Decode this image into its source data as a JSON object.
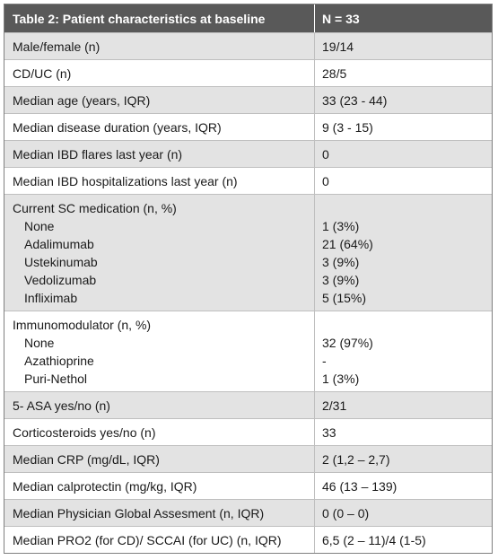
{
  "table": {
    "header": [
      "Table 2: Patient characteristics at baseline",
      "N = 33"
    ],
    "rows": [
      {
        "label": "Male/female (n)",
        "value": "19/14"
      },
      {
        "label": "CD/UC (n)",
        "value": "28/5"
      },
      {
        "label": "Median age (years, IQR)",
        "value": "33 (23 - 44)"
      },
      {
        "label": "Median disease duration (years, IQR)",
        "value": "9 (3 - 15)"
      },
      {
        "label": "Median IBD flares last year (n)",
        "value": "0"
      },
      {
        "label": "Median IBD hospitalizations last year (n)",
        "value": "0"
      },
      {
        "label": "Current SC medication (n, %)",
        "items": [
          [
            "None",
            "1 (3%)"
          ],
          [
            "Adalimumab",
            "21 (64%)"
          ],
          [
            "Ustekinumab",
            "3 (9%)"
          ],
          [
            "Vedolizumab",
            "3 (9%)"
          ],
          [
            "Infliximab",
            "5 (15%)"
          ]
        ]
      },
      {
        "label": "Immunomodulator (n, %)",
        "items": [
          [
            "None",
            "32 (97%)"
          ],
          [
            "Azathioprine",
            "-"
          ],
          [
            "Puri-Nethol",
            "1 (3%)"
          ]
        ]
      },
      {
        "label": "5- ASA yes/no (n)",
        "value": "2/31"
      },
      {
        "label": "Corticosteroids yes/no (n)",
        "value": "33"
      },
      {
        "label": "Median CRP (mg/dL, IQR)",
        "value": "2 (1,2 – 2,7)"
      },
      {
        "label": "Median calprotectin (mg/kg, IQR)",
        "value": "46 (13 – 139)"
      },
      {
        "label": "Median Physician Global Assesment (n, IQR)",
        "value": "0 (0 – 0)"
      },
      {
        "label": "Median PRO2 (for CD)/ SCCAI (for UC) (n, IQR)",
        "value": "6,5 (2 – 11)/4 (1-5)"
      }
    ]
  }
}
